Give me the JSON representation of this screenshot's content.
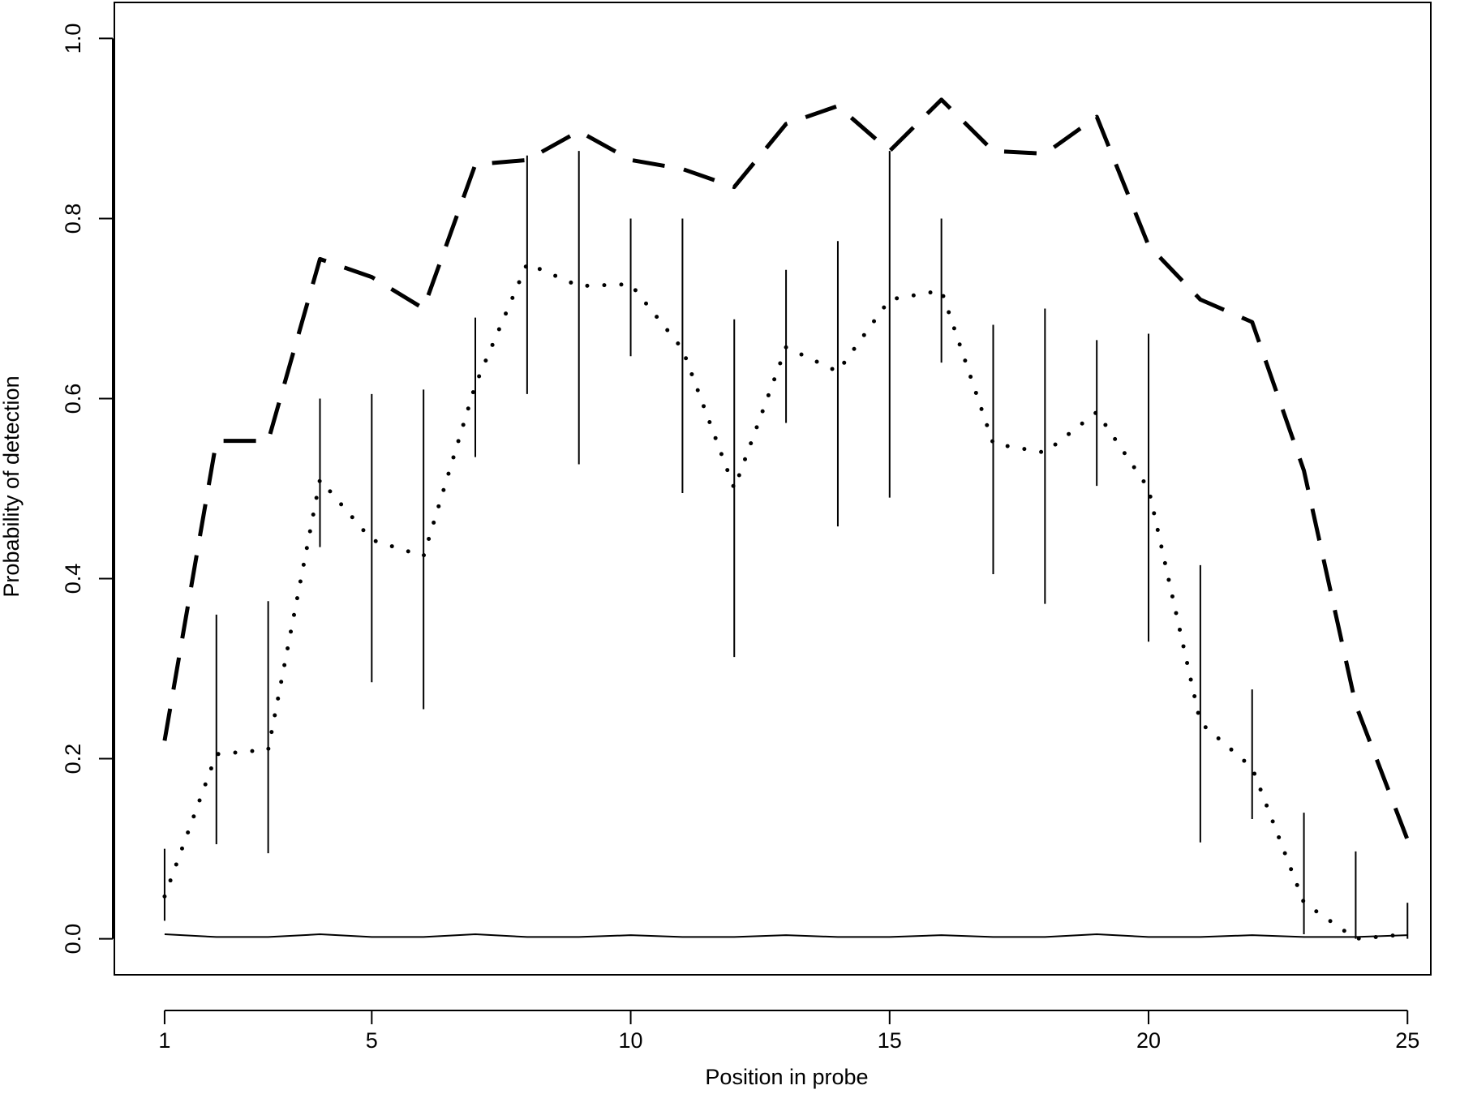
{
  "chart_data": {
    "type": "line",
    "x_label": "Position in probe",
    "y_label": "Probability of detection",
    "x": [
      1,
      2,
      3,
      4,
      5,
      6,
      7,
      8,
      9,
      10,
      11,
      12,
      13,
      14,
      15,
      16,
      17,
      18,
      19,
      20,
      21,
      22,
      23,
      24,
      25
    ],
    "xlim": [
      0.03,
      25.45
    ],
    "ylim": [
      -0.04,
      1.04
    ],
    "xticks": [
      1,
      5,
      10,
      15,
      20,
      25
    ],
    "yticks": [
      {
        "value": 0,
        "label": "0.0"
      },
      0.2,
      0.4,
      0.6,
      0.8,
      {
        "value": 1,
        "label": "1.0"
      }
    ],
    "series": [
      {
        "style": "dashed",
        "color": "#000000",
        "values": [
          0.22,
          0.553,
          0.553,
          0.755,
          0.735,
          0.7,
          0.86,
          0.865,
          0.897,
          0.865,
          0.855,
          0.835,
          0.905,
          0.925,
          0.875,
          0.932,
          0.875,
          0.872,
          0.913,
          0.77,
          0.71,
          0.685,
          0.52,
          0.26,
          0.11
        ]
      },
      {
        "style": "dotted",
        "color": "#000000",
        "values": [
          0.047,
          0.205,
          0.21,
          0.51,
          0.443,
          0.425,
          0.615,
          0.75,
          0.725,
          0.727,
          0.655,
          0.5,
          0.657,
          0.63,
          0.71,
          0.72,
          0.55,
          0.54,
          0.585,
          0.5,
          0.24,
          0.19,
          0.04,
          0.0,
          0.005
        ]
      },
      {
        "style": "solid",
        "color": "#000000",
        "values": [
          0.005,
          0.002,
          0.002,
          0.005,
          0.002,
          0.002,
          0.005,
          0.002,
          0.002,
          0.004,
          0.002,
          0.002,
          0.004,
          0.002,
          0.002,
          0.004,
          0.002,
          0.002,
          0.005,
          0.002,
          0.002,
          0.004,
          0.002,
          0.002,
          0.004
        ]
      }
    ],
    "error_bars": {
      "color": "#000000",
      "low": [
        0.02,
        0.105,
        0.095,
        0.435,
        0.285,
        0.255,
        0.535,
        0.605,
        0.527,
        0.647,
        0.495,
        0.313,
        0.573,
        0.458,
        0.49,
        0.64,
        0.405,
        0.372,
        0.503,
        0.33,
        0.107,
        0.133,
        0.005,
        0.0,
        0.0
      ],
      "high": [
        0.1,
        0.36,
        0.375,
        0.6,
        0.605,
        0.61,
        0.69,
        0.87,
        0.875,
        0.8,
        0.8,
        0.688,
        0.743,
        0.775,
        0.875,
        0.8,
        0.682,
        0.7,
        0.665,
        0.672,
        0.415,
        0.277,
        0.14,
        0.097,
        0.04
      ]
    }
  }
}
